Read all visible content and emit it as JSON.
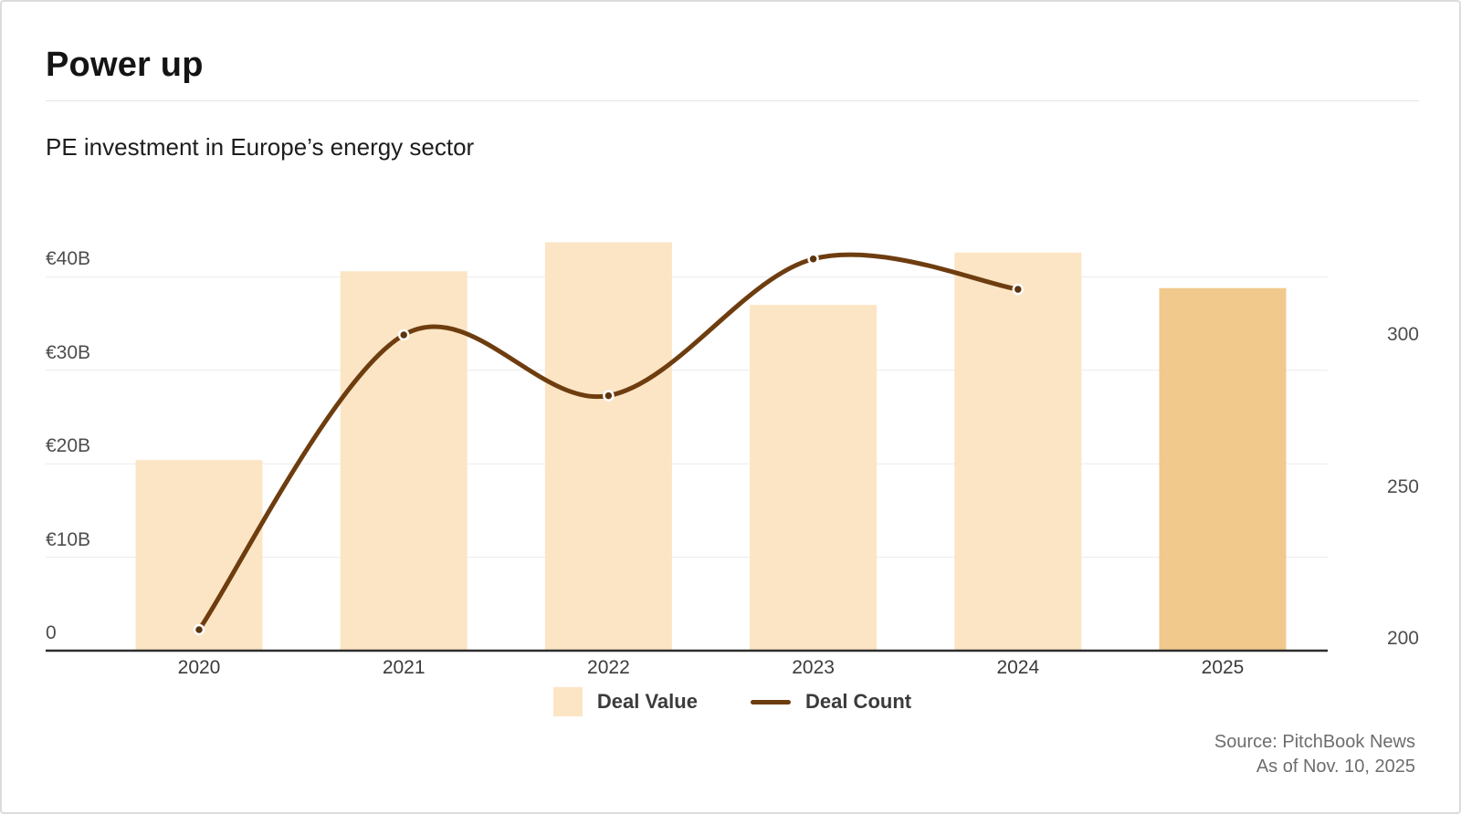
{
  "header": {
    "title": "Power up",
    "subtitle": "PE investment in Europe’s energy sector"
  },
  "legend": {
    "items": [
      {
        "label": "Deal Value",
        "swatch_color": "#fce5c5"
      },
      {
        "label": "Deal Count",
        "swatch_color": "#6e3d0f"
      }
    ]
  },
  "source": {
    "line1": "Source: PitchBook News",
    "line2": "As of Nov. 10, 2025"
  },
  "colors": {
    "bar": "#fce5c5",
    "bar_highlight": "#f1c98d",
    "line": "#6e3d0f",
    "point_fill": "#5d340d",
    "point_ring": "#ffffff",
    "gridline": "#ececec",
    "axis_line": "#2d2d2d",
    "tick_text": "#4d4d4d"
  },
  "chart_data": {
    "type": "bar",
    "subtype": "combo-bar-line",
    "title": "Power up",
    "subtitle": "PE investment in Europe’s energy sector",
    "categories": [
      "2020",
      "2021",
      "2022",
      "2023",
      "2024",
      "2025"
    ],
    "series": [
      {
        "name": "Deal Value",
        "type": "bar",
        "axis": "left",
        "unit": "EUR billions",
        "values": [
          20.4,
          40.6,
          43.7,
          37.0,
          42.6,
          38.8
        ],
        "highlight_category": "2025"
      },
      {
        "name": "Deal Count",
        "type": "line",
        "axis": "right",
        "unit": "deals",
        "values": [
          203,
          300,
          280,
          325,
          315,
          null
        ]
      }
    ],
    "left_axis": {
      "ticks": [
        {
          "value": 0,
          "label": "0"
        },
        {
          "value": 10,
          "label": "€10B"
        },
        {
          "value": 20,
          "label": "€20B"
        },
        {
          "value": 30,
          "label": "€30B"
        },
        {
          "value": 40,
          "label": "€40B"
        }
      ],
      "range": [
        0,
        44.7
      ]
    },
    "right_axis": {
      "ticks": [
        {
          "value": 200,
          "label": "200"
        },
        {
          "value": 250,
          "label": "250"
        },
        {
          "value": 300,
          "label": "300"
        }
      ],
      "range": [
        196,
        327
      ]
    },
    "grid": "horizontal",
    "legend_position": "bottom"
  }
}
